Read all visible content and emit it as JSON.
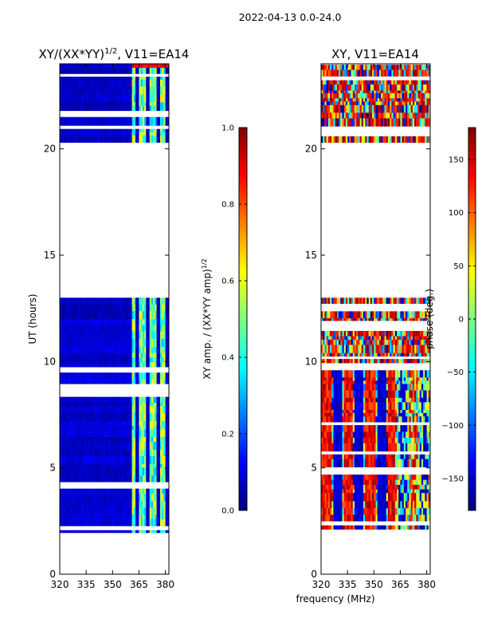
{
  "figure": {
    "suptitle": "2022-04-13 0.0-24.0",
    "xlabel": "frequency (MHz)"
  },
  "colors": {
    "jet_stops": [
      "#00007f",
      "#0000ff",
      "#007fff",
      "#00ffff",
      "#7fff7f",
      "#ffff00",
      "#ff7f00",
      "#ff0000",
      "#7f0000"
    ],
    "frame": "#000000",
    "gap": "#ffffff"
  },
  "chart_data": [
    {
      "type": "heatmap",
      "title_main": "XY/(XX*YY)",
      "title_sup": "1/2",
      "title_rest": ", V11=EA14",
      "xlabel": "",
      "ylabel": "UT (hours)",
      "xlim": [
        320,
        382
      ],
      "ylim": [
        0,
        24
      ],
      "xticks": [
        320,
        335,
        350,
        365,
        380
      ],
      "yticks": [
        0,
        5,
        10,
        15,
        20
      ],
      "data_ranges_hours": [
        [
          1.95,
          13.0
        ],
        [
          20.3,
          24.0
        ]
      ],
      "bright_channels_mhz": [
        [
          361,
          363
        ],
        [
          365,
          369
        ],
        [
          371,
          375
        ],
        [
          377,
          380
        ]
      ],
      "colorbar": {
        "label_main": "XY amp. / (XX*YY amp)",
        "label_sup": "1/2",
        "vmin": 0.0,
        "vmax": 1.0,
        "ticks": [
          0.0,
          0.2,
          0.4,
          0.6,
          0.8,
          1.0
        ],
        "tick_labels": [
          "0.0",
          "0.2",
          "0.4",
          "0.6",
          "0.8",
          "1.0"
        ]
      }
    },
    {
      "type": "heatmap",
      "title": "XY, V11=EA14",
      "xlabel": "",
      "ylabel": "",
      "xlim": [
        320,
        382
      ],
      "ylim": [
        0,
        24
      ],
      "xticks": [
        320,
        335,
        350,
        365,
        380
      ],
      "yticks": [
        0,
        5,
        10,
        15,
        20
      ],
      "data_ranges_hours": [
        [
          1.95,
          13.0
        ],
        [
          20.3,
          24.0
        ]
      ],
      "colorbar": {
        "label": "phase (deg.)",
        "vmin": -180,
        "vmax": 180,
        "ticks": [
          -150,
          -100,
          -50,
          0,
          50,
          100,
          150
        ],
        "tick_labels": [
          "−150",
          "−100",
          "−50",
          "0",
          "50",
          "100",
          "150"
        ]
      }
    }
  ]
}
